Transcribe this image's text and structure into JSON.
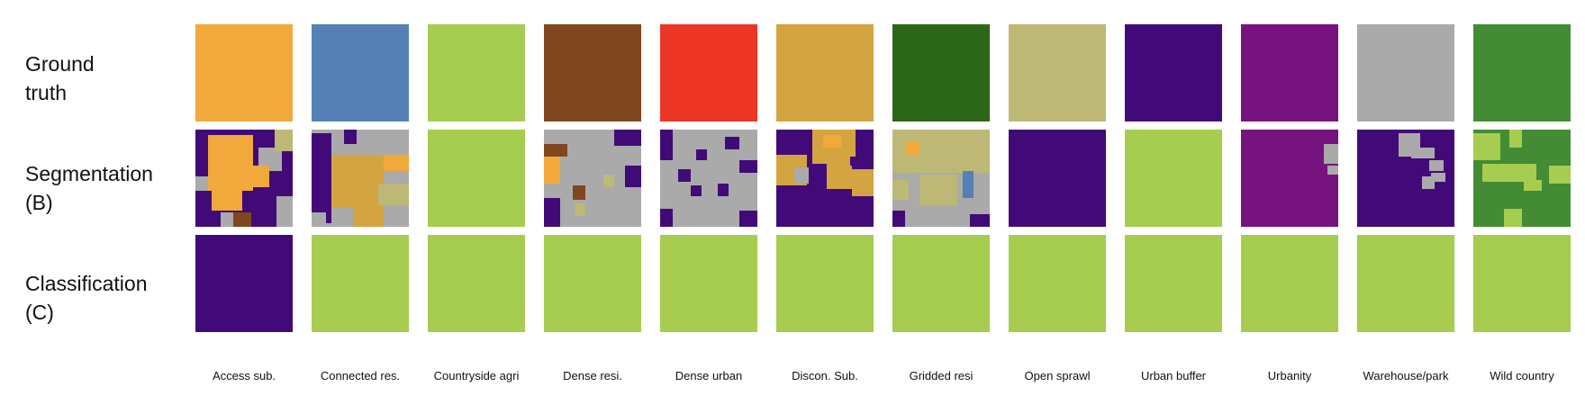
{
  "rows": [
    {
      "label": "Ground\ntruth"
    },
    {
      "label": "Segmentation\n(B)"
    },
    {
      "label": "Classification\n(C)"
    }
  ],
  "classes": [
    {
      "name": "Access sub.",
      "color": "#f2a93b"
    },
    {
      "name": "Connected res.",
      "color": "#5580b5"
    },
    {
      "name": "Countryside agri",
      "color": "#a6cc50"
    },
    {
      "name": "Dense resi.",
      "color": "#804620"
    },
    {
      "name": "Dense urban",
      "color": "#ec3525"
    },
    {
      "name": "Discon. Sub.",
      "color": "#d4a440"
    },
    {
      "name": "Gridded resi",
      "color": "#2c6618"
    },
    {
      "name": "Open sprawl",
      "color": "#bdb876"
    },
    {
      "name": "Urban buffer",
      "color": "#420a78"
    },
    {
      "name": "Urbanity",
      "color": "#77137e"
    },
    {
      "name": "Warehouse/park",
      "color": "#aaaaaa"
    },
    {
      "name": "Wild country",
      "color": "#438b34"
    }
  ],
  "segmentation_dominant": [
    "Urban buffer",
    "Warehouse/park",
    "Countryside agri",
    "Warehouse/park",
    "Warehouse/park",
    "Urban buffer",
    "Warehouse/park",
    "Urban buffer",
    "Countryside agri",
    "Urbanity",
    "Urban buffer",
    "Wild country"
  ],
  "classification": [
    "Urban buffer",
    "Countryside agri",
    "Countryside agri",
    "Countryside agri",
    "Countryside agri",
    "Countryside agri",
    "Countryside agri",
    "Countryside agri",
    "Countryside agri",
    "Countryside agri",
    "Countryside agri",
    "Countryside agri"
  ]
}
